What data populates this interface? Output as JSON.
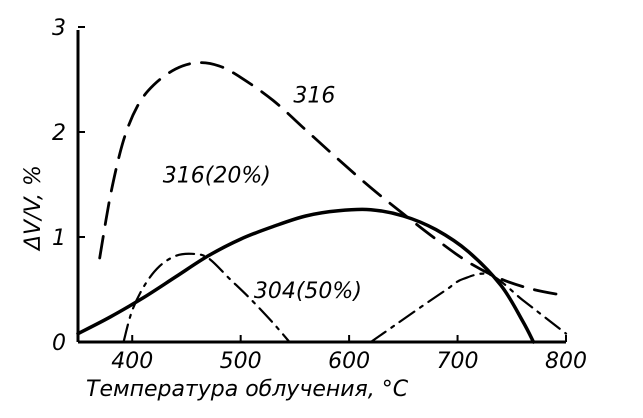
{
  "chart_data": {
    "type": "line",
    "xlabel": "Температура облучения, °C",
    "ylabel": "ΔV/V, %",
    "xlim": [
      350,
      800
    ],
    "ylim": [
      0,
      3
    ],
    "x_ticks": [
      {
        "value": 400,
        "label": "400"
      },
      {
        "value": 500,
        "label": "500"
      },
      {
        "value": 600,
        "label": "600"
      },
      {
        "value": 700,
        "label": "700"
      },
      {
        "value": 800,
        "label": "800"
      }
    ],
    "y_ticks": [
      {
        "value": 0,
        "label": "0"
      },
      {
        "value": 1,
        "label": "1"
      },
      {
        "value": 2,
        "label": "2"
      },
      {
        "value": 3,
        "label": "3"
      }
    ],
    "grid": false,
    "series": [
      {
        "name": "316",
        "style": "dashed",
        "label_pos": [
          568,
          2.28
        ],
        "points": [
          [
            370,
            0.8
          ],
          [
            380,
            1.4
          ],
          [
            392,
            1.92
          ],
          [
            405,
            2.25
          ],
          [
            420,
            2.45
          ],
          [
            440,
            2.6
          ],
          [
            460,
            2.66
          ],
          [
            480,
            2.63
          ],
          [
            500,
            2.52
          ],
          [
            530,
            2.3
          ],
          [
            560,
            2.02
          ],
          [
            590,
            1.74
          ],
          [
            620,
            1.47
          ],
          [
            650,
            1.22
          ],
          [
            680,
            0.98
          ],
          [
            710,
            0.76
          ],
          [
            740,
            0.6
          ],
          [
            770,
            0.5
          ],
          [
            795,
            0.45
          ]
        ]
      },
      {
        "name": "316(20%)",
        "style": "solid",
        "label_pos": [
          478,
          1.52
        ],
        "points": [
          [
            350,
            0.08
          ],
          [
            380,
            0.24
          ],
          [
            410,
            0.42
          ],
          [
            440,
            0.62
          ],
          [
            470,
            0.82
          ],
          [
            500,
            0.98
          ],
          [
            530,
            1.1
          ],
          [
            560,
            1.2
          ],
          [
            590,
            1.25
          ],
          [
            620,
            1.26
          ],
          [
            650,
            1.2
          ],
          [
            680,
            1.07
          ],
          [
            710,
            0.86
          ],
          [
            740,
            0.54
          ],
          [
            760,
            0.2
          ],
          [
            770,
            0.0
          ]
        ]
      },
      {
        "name": "304(50%)",
        "style": "dashdot",
        "label_pos": [
          562,
          0.42
        ],
        "points": [
          [
            392,
            0.0
          ],
          [
            400,
            0.3
          ],
          [
            412,
            0.55
          ],
          [
            425,
            0.72
          ],
          [
            440,
            0.82
          ],
          [
            455,
            0.84
          ],
          [
            470,
            0.8
          ],
          [
            490,
            0.6
          ],
          [
            510,
            0.4
          ],
          [
            530,
            0.18
          ],
          [
            545,
            0.0
          ]
        ],
        "points2": [
          [
            620,
            0.0
          ],
          [
            645,
            0.18
          ],
          [
            670,
            0.36
          ],
          [
            690,
            0.5
          ],
          [
            705,
            0.6
          ],
          [
            730,
            0.64
          ],
          [
            760,
            0.4
          ],
          [
            785,
            0.2
          ],
          [
            800,
            0.08
          ]
        ]
      }
    ]
  }
}
